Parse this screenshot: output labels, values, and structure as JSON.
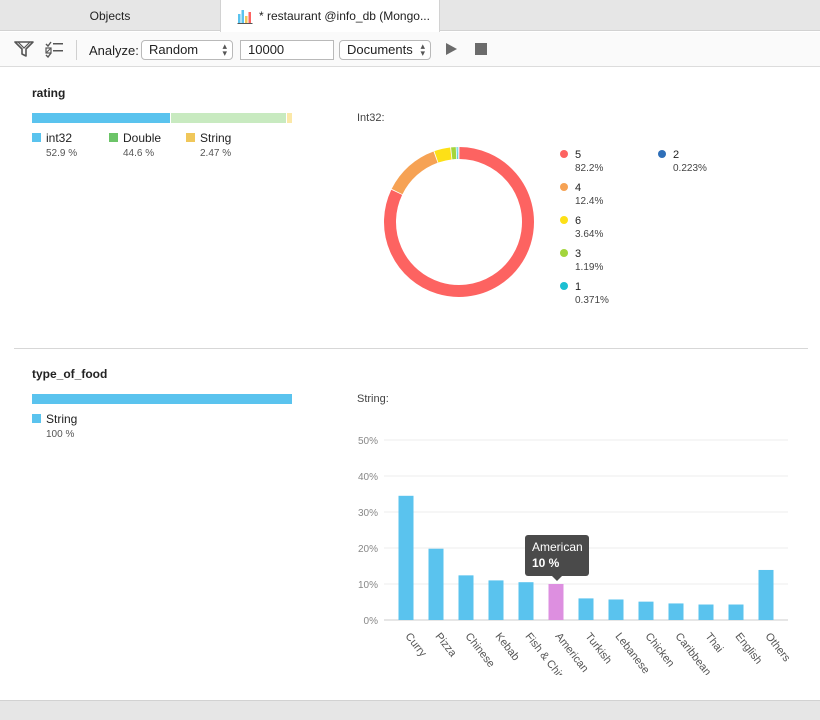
{
  "tabs": [
    {
      "label": "Objects",
      "active": false
    },
    {
      "label": "* restaurant @info_db (Mongo...",
      "active": true
    }
  ],
  "toolbar": {
    "analyze_label": "Analyze:",
    "sample_mode": "Random",
    "sample_size": "10000",
    "scope": "Documents"
  },
  "colors": {
    "blue": "#5ac3ee",
    "green": "#c8eac0",
    "yellow": "#fbe8a8",
    "highlight": "#dd8fe0"
  },
  "rating": {
    "title": "rating",
    "types": [
      {
        "name": "int32",
        "pct": "52.9 %",
        "value": 52.9,
        "color": "#5ac3ee",
        "swatch": "#5ac3ee"
      },
      {
        "name": "Double",
        "pct": "44.6 %",
        "value": 44.6,
        "color": "#c8eac0",
        "swatch": "#6cc468"
      },
      {
        "name": "String",
        "pct": "2.47 %",
        "value": 2.47,
        "color": "#fbe8a8",
        "swatch": "#f0c75a"
      }
    ],
    "chart_label": "Int32:"
  },
  "chart_data": [
    {
      "type": "pie",
      "title": "Int32:",
      "donut": true,
      "slices": [
        {
          "label": "5",
          "pct": "82.2%",
          "value": 82.2,
          "color": "#fd6361"
        },
        {
          "label": "4",
          "pct": "12.4%",
          "value": 12.4,
          "color": "#f6a254"
        },
        {
          "label": "6",
          "pct": "3.64%",
          "value": 3.64,
          "color": "#fde017"
        },
        {
          "label": "3",
          "pct": "1.19%",
          "value": 1.19,
          "color": "#a3d53c"
        },
        {
          "label": "1",
          "pct": "0.371%",
          "value": 0.371,
          "color": "#1bbfd2"
        },
        {
          "label": "2",
          "pct": "0.223%",
          "value": 0.223,
          "color": "#2f6fb8"
        }
      ]
    },
    {
      "type": "bar",
      "title": "String:",
      "categories": [
        "Curry",
        "Pizza",
        "Chinese",
        "Kebab",
        "Fish & Chips",
        "American",
        "Turkish",
        "Lebanese",
        "Chicken",
        "Caribbean",
        "Thai",
        "English",
        "Others"
      ],
      "values": [
        34.5,
        19.8,
        12.4,
        11.0,
        10.5,
        10.0,
        6.0,
        5.7,
        5.1,
        4.6,
        4.3,
        4.3,
        13.9
      ],
      "highlight_index": 5,
      "ylim": [
        0,
        50
      ],
      "yticks": [
        "0%",
        "10%",
        "20%",
        "30%",
        "40%",
        "50%"
      ],
      "grid": true,
      "tooltip": {
        "label": "American",
        "value": "10 %"
      }
    }
  ],
  "type_of_food": {
    "title": "type_of_food",
    "types": [
      {
        "name": "String",
        "pct": "100 %",
        "value": 100,
        "color": "#5ac3ee",
        "swatch": "#5ac3ee"
      }
    ],
    "chart_label": "String:"
  }
}
